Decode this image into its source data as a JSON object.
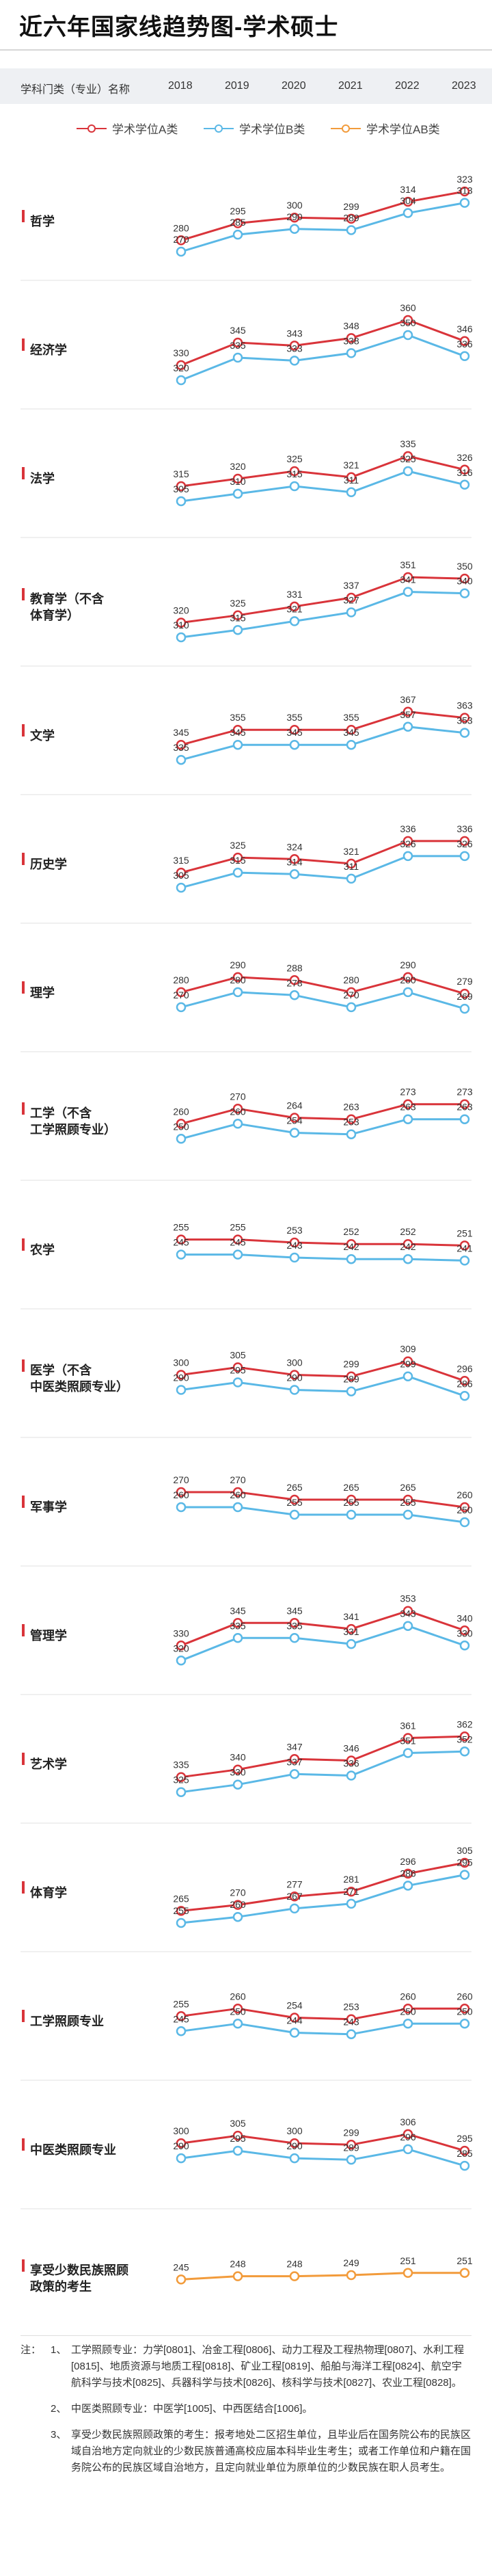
{
  "title": "近六年国家线趋势图-学术硕士",
  "header": {
    "category_label": "学科门类（专业）名称",
    "years": [
      "2018",
      "2019",
      "2020",
      "2021",
      "2022",
      "2023"
    ]
  },
  "legend": [
    {
      "name": "学术学位A类",
      "color": "#d9343a"
    },
    {
      "name": "学术学位B类",
      "color": "#5ab8e6"
    },
    {
      "name": "学术学位AB类",
      "color": "#f29b3b"
    }
  ],
  "chart_data": {
    "type": "line",
    "x": [
      "2018",
      "2019",
      "2020",
      "2021",
      "2022",
      "2023"
    ],
    "panels": [
      {
        "label": "哲学",
        "A": [
          280,
          295,
          300,
          299,
          314,
          323
        ],
        "B": [
          270,
          285,
          290,
          289,
          304,
          313
        ]
      },
      {
        "label": "经济学",
        "A": [
          330,
          345,
          343,
          348,
          360,
          346
        ],
        "B": [
          320,
          335,
          333,
          338,
          350,
          336
        ]
      },
      {
        "label": "法学",
        "A": [
          315,
          320,
          325,
          321,
          335,
          326
        ],
        "B": [
          305,
          310,
          315,
          311,
          325,
          316
        ]
      },
      {
        "label": "教育学（不含体育学）",
        "A": [
          320,
          325,
          331,
          337,
          351,
          350
        ],
        "B": [
          310,
          315,
          321,
          327,
          341,
          340
        ]
      },
      {
        "label": "文学",
        "A": [
          345,
          355,
          355,
          355,
          367,
          363
        ],
        "B": [
          335,
          345,
          345,
          345,
          357,
          353
        ]
      },
      {
        "label": "历史学",
        "A": [
          315,
          325,
          324,
          321,
          336,
          336
        ],
        "B": [
          305,
          315,
          314,
          311,
          326,
          326
        ]
      },
      {
        "label": "理学",
        "A": [
          280,
          290,
          288,
          280,
          290,
          279
        ],
        "B": [
          270,
          280,
          278,
          270,
          280,
          269
        ]
      },
      {
        "label": "工学（不含工学照顾专业）",
        "A": [
          260,
          270,
          264,
          263,
          273,
          273
        ],
        "B": [
          250,
          260,
          254,
          253,
          263,
          263
        ]
      },
      {
        "label": "农学",
        "A": [
          255,
          255,
          253,
          252,
          252,
          251
        ],
        "B": [
          245,
          245,
          243,
          242,
          242,
          241
        ]
      },
      {
        "label": "医学（不含中医类照顾专业）",
        "A": [
          300,
          305,
          300,
          299,
          309,
          296
        ],
        "B": [
          290,
          295,
          290,
          289,
          299,
          286
        ]
      },
      {
        "label": "军事学",
        "A": [
          270,
          270,
          265,
          265,
          265,
          260
        ],
        "B": [
          260,
          260,
          255,
          255,
          255,
          250
        ]
      },
      {
        "label": "管理学",
        "A": [
          330,
          345,
          345,
          341,
          353,
          340
        ],
        "B": [
          320,
          335,
          335,
          331,
          343,
          330
        ]
      },
      {
        "label": "艺术学",
        "A": [
          335,
          340,
          347,
          346,
          361,
          362
        ],
        "B": [
          325,
          330,
          337,
          336,
          351,
          352
        ]
      },
      {
        "label": "体育学",
        "A": [
          265,
          270,
          277,
          281,
          296,
          305
        ],
        "B": [
          255,
          260,
          267,
          271,
          286,
          295
        ]
      },
      {
        "label": "工学照顾专业",
        "A": [
          255,
          260,
          254,
          253,
          260,
          260
        ],
        "B": [
          245,
          250,
          244,
          243,
          250,
          250
        ]
      },
      {
        "label": "中医类照顾专业",
        "A": [
          300,
          305,
          300,
          299,
          306,
          295
        ],
        "B": [
          290,
          295,
          290,
          289,
          296,
          285
        ]
      },
      {
        "label": "享受少数民族照顾政策的考生",
        "AB": [
          245,
          248,
          248,
          249,
          251,
          251
        ]
      }
    ]
  },
  "notes": {
    "prefix": "注：",
    "items": [
      {
        "num": "1、",
        "text": "工学照顾专业：力学[0801]、冶金工程[0806]、动力工程及工程热物理[0807]、水利工程[0815]、地质资源与地质工程[0818]、矿业工程[0819]、船舶与海洋工程[0824]、航空宇航科学与技术[0825]、兵器科学与技术[0826]、核科学与技术[0827]、农业工程[0828]。"
      },
      {
        "num": "2、",
        "text": "中医类照顾专业：中医学[1005]、中西医结合[1006]。"
      },
      {
        "num": "3、",
        "text": "享受少数民族照顾政策的考生：报考地处二区招生单位，且毕业后在国务院公布的民族区域自治地方定向就业的少数民族普通高校应届本科毕业生考生；或者工作单位和户籍在国务院公布的民族区域自治地方，且定向就业单位为原单位的少数民族在职人员考生。"
      }
    ]
  }
}
